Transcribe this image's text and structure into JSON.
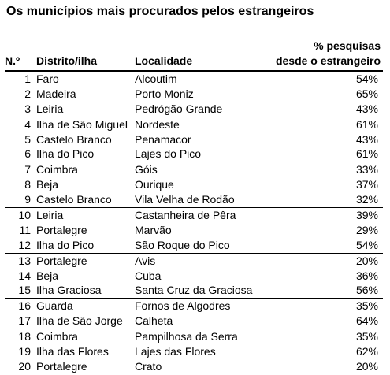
{
  "title": "Os municípios mais procurados pelos estrangeiros",
  "headers": {
    "number": "N.º",
    "district": "Distrito/ilha",
    "locality": "Localidade",
    "percent_line1": "% pesquisas",
    "percent_line2": "desde o estrangeiro"
  },
  "groups": [
    [
      {
        "n": "1",
        "district": "Faro",
        "locality": "Alcoutim",
        "pct": "54%"
      },
      {
        "n": "2",
        "district": "Madeira",
        "locality": "Porto Moniz",
        "pct": "65%"
      },
      {
        "n": "3",
        "district": "Leiria",
        "locality": "Pedrógão Grande",
        "pct": "43%"
      }
    ],
    [
      {
        "n": "4",
        "district": "Ilha de São Miguel",
        "locality": "Nordeste",
        "pct": "61%"
      },
      {
        "n": "5",
        "district": "Castelo Branco",
        "locality": "Penamacor",
        "pct": "43%"
      },
      {
        "n": "6",
        "district": "Ilha do Pico",
        "locality": "Lajes do Pico",
        "pct": "61%"
      }
    ],
    [
      {
        "n": "7",
        "district": "Coimbra",
        "locality": "Góis",
        "pct": "33%"
      },
      {
        "n": "8",
        "district": "Beja",
        "locality": "Ourique",
        "pct": "37%"
      },
      {
        "n": "9",
        "district": "Castelo Branco",
        "locality": "Vila Velha de Rodão",
        "pct": "32%"
      }
    ],
    [
      {
        "n": "10",
        "district": "Leiria",
        "locality": "Castanheira de Pêra",
        "pct": "39%"
      },
      {
        "n": "11",
        "district": "Portalegre",
        "locality": "Marvão",
        "pct": "29%"
      },
      {
        "n": "12",
        "district": "Ilha do Pico",
        "locality": "São Roque do Pico",
        "pct": "54%"
      }
    ],
    [
      {
        "n": "13",
        "district": "Portalegre",
        "locality": "Avis",
        "pct": "20%"
      },
      {
        "n": "14",
        "district": "Beja",
        "locality": "Cuba",
        "pct": "36%"
      },
      {
        "n": "15",
        "district": "Ilha Graciosa",
        "locality": "Santa Cruz da Graciosa",
        "pct": "56%"
      }
    ],
    [
      {
        "n": "16",
        "district": "Guarda",
        "locality": "Fornos de Algodres",
        "pct": "35%"
      },
      {
        "n": "17",
        "district": "Ilha de São Jorge",
        "locality": "Calheta",
        "pct": "64%"
      }
    ],
    [
      {
        "n": "18",
        "district": "Coimbra",
        "locality": "Pampilhosa da Serra",
        "pct": "35%"
      },
      {
        "n": "19",
        "district": "Ilha das Flores",
        "locality": "Lajes das Flores",
        "pct": "62%"
      },
      {
        "n": "20",
        "district": "Portalegre",
        "locality": "Crato",
        "pct": "20%"
      }
    ]
  ]
}
